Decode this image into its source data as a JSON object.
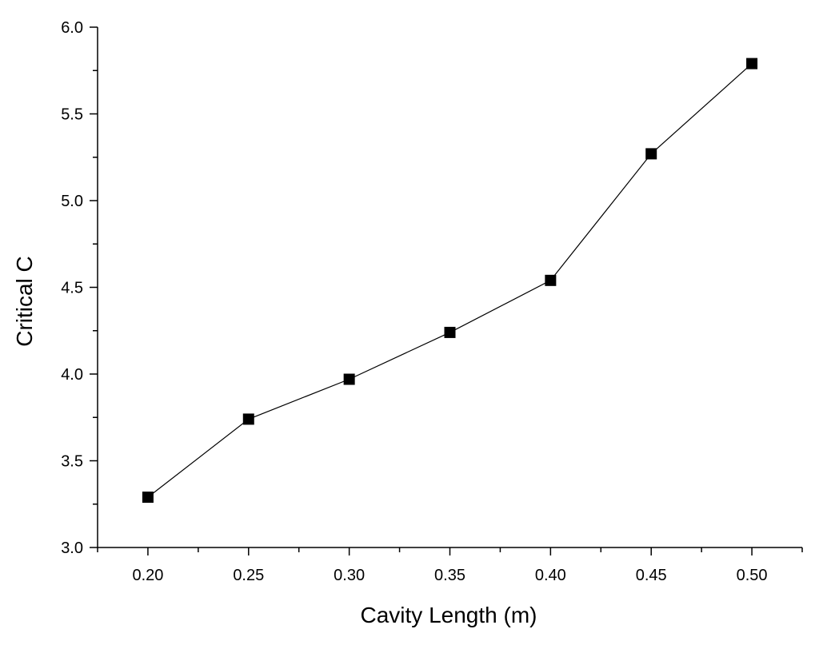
{
  "chart_data": {
    "type": "line",
    "title": "",
    "xlabel": "Cavity Length (m)",
    "ylabel": "Critical C",
    "x": [
      0.2,
      0.25,
      0.3,
      0.35,
      0.4,
      0.45,
      0.5
    ],
    "series": [
      {
        "values": [
          3.29,
          3.74,
          3.97,
          4.24,
          4.54,
          5.27,
          5.79
        ],
        "marker": "square",
        "color": "#000000"
      }
    ],
    "xlim": [
      0.175,
      0.525
    ],
    "ylim": [
      3.0,
      6.0
    ],
    "x_ticks": [
      0.2,
      0.25,
      0.3,
      0.35,
      0.4,
      0.45,
      0.5
    ],
    "x_tick_labels": [
      "0.20",
      "0.25",
      "0.30",
      "0.35",
      "0.40",
      "0.45",
      "0.50"
    ],
    "y_ticks": [
      3.0,
      3.5,
      4.0,
      4.5,
      5.0,
      5.5,
      6.0
    ],
    "y_tick_labels": [
      "3.0",
      "3.5",
      "4.0",
      "4.5",
      "5.0",
      "5.5",
      "6.0"
    ],
    "grid": false,
    "legend": "none"
  }
}
